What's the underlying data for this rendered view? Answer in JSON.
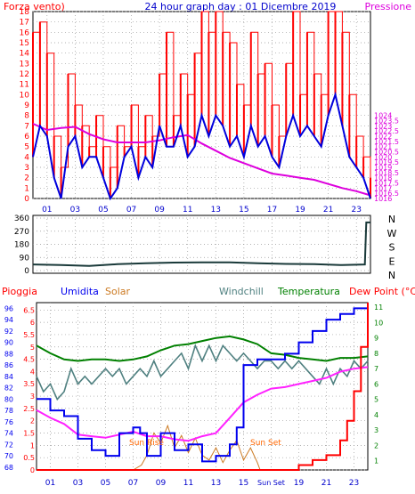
{
  "colors": {
    "wind": "#ff0000",
    "gust": "#ff0000",
    "wind_avg": "#0000dd",
    "pressure": "#dd00dd",
    "direction": "#1a3a3a",
    "rain": "#ff0000",
    "humidity": "#0000ee",
    "solar": "#cc7a22",
    "windchill": "#4f8080",
    "temperature": "#008000",
    "dewpoint": "#ff22ff",
    "sun_marker": "#ff6600",
    "grid": "#999999",
    "title": "#0000cc"
  },
  "icons": [
    "none"
  ],
  "chart_data": [
    {
      "type": "line",
      "title": "24 hour graph day : 01 Dicembre 2019",
      "ylabel": "Forza vento)",
      "y2label": "Pressione",
      "x_ticks": [
        "01",
        "03",
        "05",
        "07",
        "09",
        "11",
        "13",
        "15",
        "17",
        "19",
        "21",
        "23"
      ],
      "x_range": [
        0,
        24
      ],
      "ylim": [
        0,
        18
      ],
      "y_ticks": [
        "0",
        "1",
        "2",
        "3",
        "4",
        "5",
        "6",
        "7",
        "8",
        "9",
        "10",
        "11",
        "12",
        "13",
        "14",
        "15",
        "16",
        "17",
        "18"
      ],
      "y2lim": [
        1016,
        1034
      ],
      "y2_ticks": [
        "1016",
        "1016.5",
        "1017",
        "1017.5",
        "1018",
        "1018.5",
        "1019",
        "1019.5",
        "1020",
        "1020.5",
        "1021",
        "1021.5",
        "1022",
        "1022.5",
        "1023",
        "1023.5",
        "1024"
      ],
      "grid": true,
      "series": [
        {
          "role": "pressure",
          "hours": [
            0,
            1,
            2,
            3,
            4,
            5,
            6,
            7,
            8,
            9,
            10,
            11,
            12,
            13,
            14,
            15,
            16,
            17,
            18,
            19,
            20,
            21,
            22,
            23,
            24
          ],
          "values": [
            1023.2,
            1022.6,
            1022.8,
            1022.9,
            1022.2,
            1021.7,
            1021.4,
            1021.4,
            1021.4,
            1021.6,
            1021.9,
            1022.1,
            1021.3,
            1020.6,
            1019.9,
            1019.4,
            1018.9,
            1018.4,
            1018.2,
            1018.0,
            1017.8,
            1017.4,
            1017.0,
            1016.7,
            1016.3
          ]
        },
        {
          "role": "wind_avg",
          "hours": [
            0,
            0.5,
            1,
            1.5,
            2,
            2.5,
            3,
            3.5,
            4,
            4.5,
            5,
            5.5,
            6,
            6.5,
            7,
            7.5,
            8,
            8.5,
            9,
            9.5,
            10,
            10.5,
            11,
            11.5,
            12,
            12.5,
            13,
            13.5,
            14,
            14.5,
            15,
            15.5,
            16,
            16.5,
            17,
            17.5,
            18,
            18.5,
            19,
            19.5,
            20,
            20.5,
            21,
            21.5,
            22,
            22.5,
            23,
            23.5,
            24
          ],
          "values": [
            4,
            7,
            6,
            2,
            0,
            5,
            6,
            3,
            4,
            4,
            2,
            0,
            1,
            4,
            5,
            2,
            4,
            3,
            7,
            5,
            5,
            7,
            4,
            5,
            8,
            6,
            8,
            7,
            5,
            6,
            4,
            7,
            5,
            6,
            4,
            3,
            6,
            8,
            6,
            7,
            6,
            5,
            8,
            10,
            7,
            4,
            3,
            2,
            0
          ]
        },
        {
          "role": "gust",
          "hours": [
            0,
            0.5,
            1,
            1.5,
            2,
            2.5,
            3,
            3.5,
            4,
            4.5,
            5,
            5.5,
            6,
            6.5,
            7,
            7.5,
            8,
            8.5,
            9,
            9.5,
            10,
            10.5,
            11,
            11.5,
            12,
            12.5,
            13,
            13.5,
            14,
            14.5,
            15,
            15.5,
            16,
            16.5,
            17,
            17.5,
            18,
            18.5,
            19,
            19.5,
            20,
            20.5,
            21,
            21.5,
            22,
            22.5,
            23,
            23.5,
            24
          ],
          "values": [
            16,
            17,
            14,
            6,
            3,
            12,
            9,
            7,
            5,
            8,
            5,
            3,
            7,
            5,
            9,
            5,
            8,
            6,
            12,
            16,
            8,
            12,
            10,
            14,
            18,
            16,
            18,
            16,
            15,
            11,
            9,
            16,
            12,
            13,
            9,
            6,
            13,
            18,
            10,
            16,
            12,
            10,
            18,
            18,
            16,
            10,
            6,
            4,
            2
          ]
        }
      ]
    },
    {
      "type": "line",
      "y_ticks": [
        "0",
        "90",
        "180",
        "270",
        "360"
      ],
      "ylim": [
        0,
        360
      ],
      "right_labels": [
        "N",
        "W",
        "S",
        "E",
        "N"
      ],
      "series": [
        {
          "role": "direction",
          "hours": [
            0,
            2,
            4,
            6,
            8,
            10,
            12,
            14,
            16,
            18,
            20,
            22,
            23.6,
            23.7,
            24
          ],
          "values": [
            42,
            38,
            32,
            44,
            50,
            55,
            57,
            56,
            50,
            46,
            44,
            38,
            42,
            330,
            330
          ]
        }
      ]
    },
    {
      "type": "line",
      "labels": {
        "rain": "Pioggia",
        "humidity": "Umidita",
        "solar": "Solar",
        "windchill": "Windchill",
        "temperature": "Temperatura",
        "dewpoint": "Dew Point (°C)"
      },
      "x_ticks": [
        "01",
        "03",
        "05",
        "07",
        "09",
        "11",
        "13",
        "15",
        "Sun Set",
        "19",
        "21",
        "23"
      ],
      "annotations": [
        "Sun Rise",
        "Sun Set"
      ],
      "rain_ticks": [
        "0",
        "0.5",
        "1",
        "1.5",
        "2",
        "2.5",
        "3",
        "3.5",
        "4",
        "4.5",
        "5",
        "5.5",
        "6",
        "6.5"
      ],
      "rain_lim": [
        0,
        6.8
      ],
      "humidity_ticks": [
        "68",
        "70",
        "72",
        "74",
        "76",
        "78",
        "80",
        "82",
        "84",
        "86",
        "88",
        "90",
        "92",
        "94",
        "96"
      ],
      "humidity_lim": [
        67.5,
        97
      ],
      "temp_ticks": [
        "1",
        "2",
        "3",
        "4",
        "5",
        "6",
        "7",
        "8",
        "9",
        "10",
        "11"
      ],
      "temp_lim": [
        0.4,
        11.3
      ],
      "series": [
        {
          "role": "rain",
          "hours": [
            0,
            18,
            19,
            20,
            21,
            22,
            22.5,
            23,
            23.5,
            24
          ],
          "values": [
            0,
            0,
            0.2,
            0.4,
            0.6,
            1.2,
            2.0,
            3.2,
            5.0,
            6.8
          ]
        },
        {
          "role": "humidity",
          "hours": [
            0,
            1,
            2,
            3,
            4,
            5,
            6,
            7,
            7.5,
            8,
            9,
            10,
            11,
            12,
            13,
            14,
            14.5,
            15,
            16,
            17,
            18,
            19,
            20,
            21,
            22,
            23,
            23.5,
            24
          ],
          "values": [
            80,
            78,
            77,
            73,
            71,
            70,
            74,
            75,
            74,
            70,
            74,
            71,
            72,
            69,
            70,
            72,
            75,
            86,
            87,
            87,
            88,
            90,
            92,
            94,
            95,
            96,
            96,
            96
          ]
        },
        {
          "role": "temperature",
          "hours": [
            0,
            1,
            2,
            3,
            4,
            5,
            6,
            7,
            8,
            9,
            10,
            11,
            12,
            13,
            14,
            15,
            16,
            17,
            18,
            19,
            20,
            21,
            22,
            23,
            24
          ],
          "values": [
            8.5,
            8.0,
            7.6,
            7.5,
            7.6,
            7.6,
            7.5,
            7.6,
            7.8,
            8.2,
            8.5,
            8.6,
            8.8,
            9.0,
            9.1,
            8.9,
            8.6,
            8.0,
            7.9,
            7.7,
            7.6,
            7.5,
            7.7,
            7.7,
            7.8
          ]
        },
        {
          "role": "dewpoint",
          "hours": [
            0,
            1,
            2,
            3,
            4,
            5,
            6,
            7,
            8,
            9,
            10,
            11,
            12,
            13,
            14,
            15,
            16,
            17,
            18,
            19,
            20,
            21,
            22,
            23,
            24
          ],
          "values": [
            4.3,
            3.8,
            3.4,
            2.7,
            2.6,
            2.5,
            2.7,
            2.9,
            2.6,
            2.6,
            2.4,
            2.3,
            2.6,
            2.8,
            3.8,
            4.8,
            5.3,
            5.7,
            5.8,
            6.0,
            6.2,
            6.4,
            6.8,
            7.0,
            7.1
          ]
        },
        {
          "role": "windchill",
          "hours": [
            0,
            0.5,
            1,
            1.5,
            2,
            2.5,
            3,
            3.5,
            4,
            4.5,
            5,
            5.5,
            6,
            6.5,
            7,
            7.5,
            8,
            8.5,
            9,
            9.5,
            10,
            10.5,
            11,
            11.5,
            12,
            12.5,
            13,
            13.5,
            14,
            14.5,
            15,
            15.5,
            16,
            16.5,
            17,
            17.5,
            18,
            18.5,
            19,
            19.5,
            20,
            20.5,
            21,
            21.5,
            22,
            22.5,
            23,
            23.5,
            24
          ],
          "values": [
            6.5,
            5.5,
            6.0,
            5.0,
            5.5,
            7.0,
            6.0,
            6.5,
            6.0,
            6.5,
            7.0,
            6.5,
            7.0,
            6.0,
            6.5,
            7.0,
            6.5,
            7.5,
            6.5,
            7.0,
            7.5,
            8.0,
            7.0,
            8.5,
            7.5,
            8.5,
            7.5,
            8.5,
            8.0,
            7.5,
            8.0,
            7.5,
            7.0,
            7.5,
            7.5,
            7.0,
            7.5,
            7.0,
            7.5,
            7.0,
            6.5,
            6.0,
            7.0,
            6.0,
            7.0,
            6.5,
            7.5,
            7.0,
            7.5
          ]
        },
        {
          "role": "solar",
          "hours": [
            7,
            7.6,
            8,
            8.5,
            9,
            9.5,
            10,
            10.5,
            11,
            11.5,
            12,
            12.5,
            13,
            13.5,
            14,
            14.5,
            15,
            15.5,
            16,
            16.2
          ],
          "values": [
            0,
            0.2,
            0.6,
            1.5,
            1.1,
            1.8,
            0.9,
            1.4,
            0.7,
            1.3,
            0.6,
            0.4,
            0.9,
            0.3,
            0.8,
            1.2,
            0.4,
            0.9,
            0.3,
            0
          ]
        }
      ]
    }
  ]
}
